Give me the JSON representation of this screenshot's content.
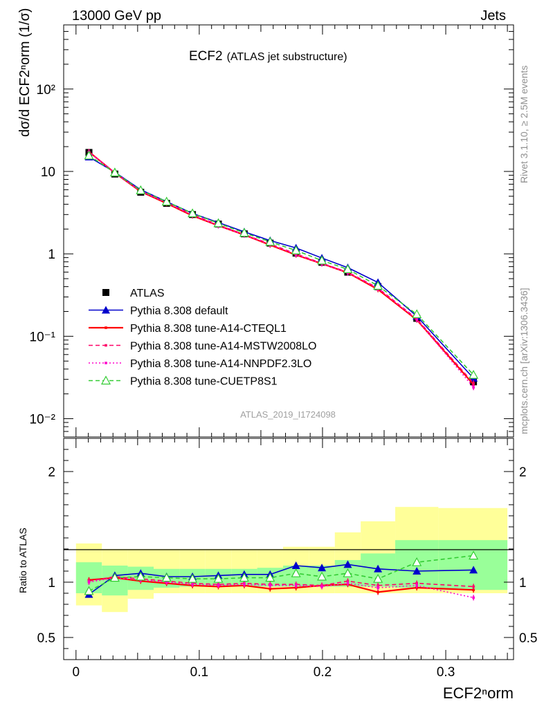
{
  "header": {
    "left": "13000 GeV pp",
    "right": "Jets",
    "title": "ECF2",
    "subtitle": "(ATLAS jet substructure)",
    "side_top": "Rivet 3.1.10, ≥ 2.5M events",
    "side_bottom": "mcplots.cern.ch [arXiv:1306.3436]",
    "analysis": "ATLAS_2019_I1724098"
  },
  "axes": {
    "ylabel_top": "dσ/d ECF2ⁿorm (1/σ)",
    "ylabel_bottom": "Ratio to ATLAS",
    "xlabel": "ECF2ⁿorm"
  },
  "chart_data": [
    {
      "type": "line",
      "panel": "main",
      "yscale": "log",
      "xlim": [
        -0.01,
        0.355
      ],
      "ylim": [
        0.006,
        600
      ],
      "y_ticks": [
        {
          "value": 0.01,
          "label": "10⁻²"
        },
        {
          "value": 0.1,
          "label": "10⁻¹"
        },
        {
          "value": 1,
          "label": "1"
        },
        {
          "value": 10,
          "label": "10"
        },
        {
          "value": 100,
          "label": "10²"
        }
      ],
      "x": [
        0.0105,
        0.0315,
        0.0525,
        0.0735,
        0.0945,
        0.1155,
        0.1365,
        0.1575,
        0.1785,
        0.1995,
        0.2205,
        0.245,
        0.2765,
        0.3225
      ],
      "series": [
        {
          "name": "ATLAS",
          "color": "#000000",
          "style": "marker-square",
          "values": [
            17.0,
            9.3,
            5.6,
            4.1,
            3.0,
            2.3,
            1.75,
            1.35,
            1.02,
            0.79,
            0.6,
            0.4,
            0.165,
            0.028
          ]
        },
        {
          "name": "Pythia 8.308 default",
          "color": "#0000cc",
          "style": "solid-triangle",
          "values": [
            15.0,
            9.8,
            6.0,
            4.3,
            3.1,
            2.4,
            1.85,
            1.45,
            1.18,
            0.89,
            0.68,
            0.45,
            0.175,
            0.031
          ]
        },
        {
          "name": "Pythia 8.308 tune-A14-CTEQL1",
          "color": "#ff0000",
          "style": "solid",
          "values": [
            17.3,
            9.6,
            5.7,
            4.1,
            2.9,
            2.2,
            1.7,
            1.28,
            0.97,
            0.76,
            0.59,
            0.37,
            0.158,
            0.026
          ]
        },
        {
          "name": "Pythia 8.308 tune-A14-MSTW2008LO",
          "color": "#ff0066",
          "style": "dashed",
          "values": [
            17.2,
            9.7,
            5.8,
            4.2,
            3.0,
            2.25,
            1.72,
            1.32,
            1.0,
            0.77,
            0.6,
            0.385,
            0.163,
            0.027
          ]
        },
        {
          "name": "Pythia 8.308 tune-A14-NNPDF2.3LO",
          "color": "#ff00cc",
          "style": "dotted",
          "values": [
            17.1,
            9.6,
            5.75,
            4.15,
            2.95,
            2.2,
            1.7,
            1.3,
            0.98,
            0.76,
            0.59,
            0.38,
            0.16,
            0.024
          ]
        },
        {
          "name": "Pythia 8.308 tune-CUETP8S1",
          "color": "#33cc33",
          "style": "dashed-open-triangle",
          "values": [
            15.6,
            9.7,
            5.9,
            4.3,
            3.1,
            2.35,
            1.8,
            1.4,
            1.1,
            0.83,
            0.65,
            0.41,
            0.185,
            0.034
          ]
        }
      ]
    },
    {
      "type": "line",
      "panel": "ratio",
      "yscale": "linear",
      "xlim": [
        -0.01,
        0.355
      ],
      "ylim": [
        0.3,
        2.3
      ],
      "y_ticks": [
        {
          "value": 0.5,
          "label": "0.5"
        },
        {
          "value": 1,
          "label": "1"
        },
        {
          "value": 2,
          "label": "2"
        }
      ],
      "x_ticks": [
        {
          "value": 0,
          "label": "0"
        },
        {
          "value": 0.1,
          "label": "0.1"
        },
        {
          "value": 0.2,
          "label": "0.2"
        },
        {
          "value": 0.3,
          "label": "0.3"
        }
      ],
      "bin_edges": [
        0.0,
        0.021,
        0.042,
        0.063,
        0.084,
        0.105,
        0.126,
        0.147,
        0.168,
        0.189,
        0.21,
        0.231,
        0.259,
        0.294,
        0.35
      ],
      "band_outer_low": [
        0.79,
        0.73,
        0.85,
        0.9,
        0.9,
        0.9,
        0.9,
        0.9,
        0.9,
        0.9,
        0.9,
        0.9,
        0.9,
        0.9
      ],
      "band_outer_high": [
        1.35,
        1.3,
        1.3,
        1.3,
        1.3,
        1.3,
        1.3,
        1.3,
        1.32,
        1.32,
        1.45,
        1.55,
        1.68,
        1.67
      ],
      "band_inner_low": [
        0.9,
        0.88,
        0.93,
        0.95,
        0.96,
        0.96,
        0.96,
        0.96,
        0.96,
        0.96,
        0.96,
        0.96,
        0.95,
        0.93
      ],
      "band_inner_high": [
        1.18,
        1.15,
        1.14,
        1.12,
        1.12,
        1.12,
        1.12,
        1.13,
        1.15,
        1.15,
        1.2,
        1.26,
        1.38,
        1.38
      ],
      "x": [
        0.0105,
        0.0315,
        0.0525,
        0.0735,
        0.0945,
        0.1155,
        0.1365,
        0.1575,
        0.1785,
        0.1995,
        0.2205,
        0.245,
        0.2765,
        0.3225
      ],
      "series": [
        {
          "name": "Pythia 8.308 default",
          "color": "#0000cc",
          "style": "solid-triangle",
          "values": [
            0.89,
            1.06,
            1.08,
            1.05,
            1.05,
            1.06,
            1.07,
            1.07,
            1.15,
            1.13,
            1.16,
            1.12,
            1.1,
            1.11
          ]
        },
        {
          "name": "Pythia 8.308 tune-A14-CTEQL1",
          "color": "#ff0000",
          "style": "solid",
          "values": [
            1.02,
            1.04,
            1.01,
            0.99,
            0.97,
            0.96,
            0.97,
            0.94,
            0.95,
            0.97,
            0.98,
            0.91,
            0.95,
            0.93
          ]
        },
        {
          "name": "Pythia 8.308 tune-A14-MSTW2008LO",
          "color": "#ff0066",
          "style": "dashed",
          "values": [
            1.01,
            1.05,
            1.03,
            1.01,
            0.99,
            0.98,
            0.99,
            0.98,
            0.98,
            0.97,
            1.01,
            0.97,
            0.99,
            0.96
          ]
        },
        {
          "name": "Pythia 8.308 tune-A14-NNPDF2.3LO",
          "color": "#ff00cc",
          "style": "dotted",
          "values": [
            1.0,
            1.04,
            1.02,
            1.0,
            0.98,
            0.97,
            0.98,
            0.97,
            0.97,
            0.96,
            0.99,
            0.95,
            0.97,
            0.86
          ]
        },
        {
          "name": "Pythia 8.308 tune-CUETP8S1",
          "color": "#33cc33",
          "style": "dashed-open-triangle",
          "values": [
            0.92,
            1.04,
            1.05,
            1.04,
            1.03,
            1.03,
            1.04,
            1.04,
            1.08,
            1.05,
            1.08,
            1.03,
            1.18,
            1.24
          ]
        }
      ]
    }
  ]
}
